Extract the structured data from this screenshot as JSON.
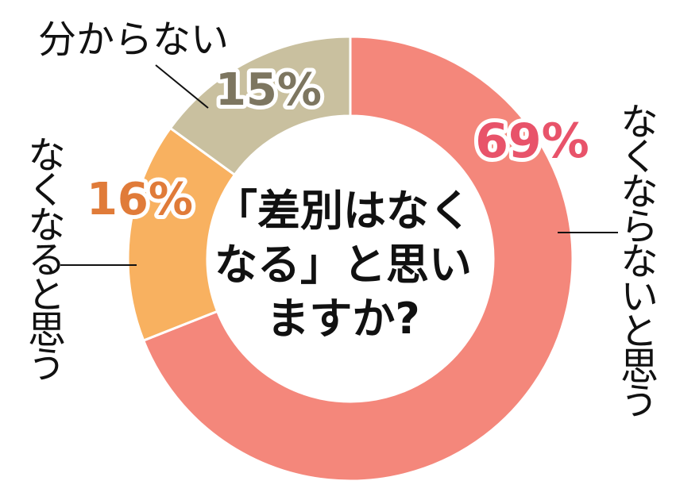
{
  "chart_data": {
    "type": "pie",
    "donut": true,
    "question_lines": [
      "「差別はなく",
      "なる」と思い",
      "ますか?"
    ],
    "slices": [
      {
        "label": "なくならないと思う",
        "value": 69,
        "value_label": "69%",
        "color": "#f4877b",
        "text_color": "#e8536a"
      },
      {
        "label": "なくなると思う",
        "value": 16,
        "value_label": "16%",
        "color": "#f8b160",
        "text_color": "#e07b39"
      },
      {
        "label": "分からない",
        "value": 15,
        "value_label": "15%",
        "color": "#c9c09f",
        "text_color": "#7d7660"
      }
    ]
  }
}
